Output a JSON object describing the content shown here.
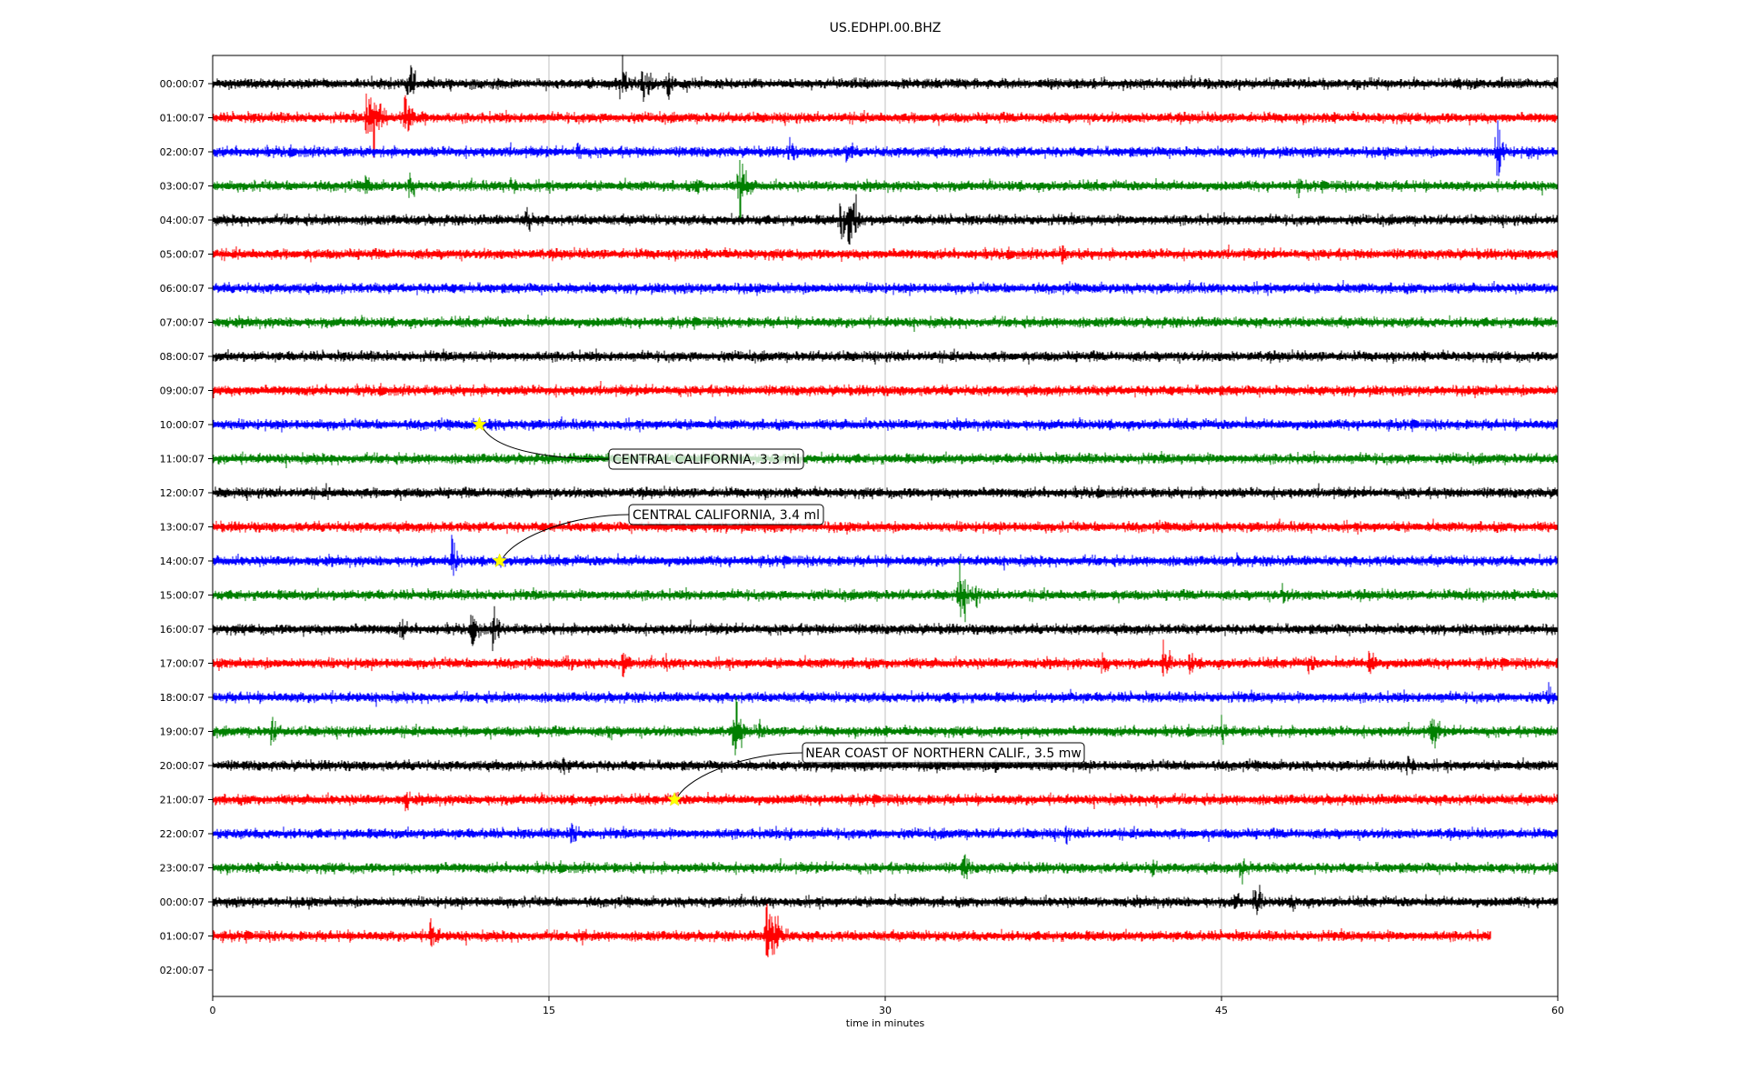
{
  "chart_data": {
    "type": "line",
    "title": "US.EDHPI.00.BHZ",
    "xlabel": "time in minutes",
    "ylabel": "",
    "xlim": [
      0,
      60
    ],
    "x_ticks": [
      "0",
      "15",
      "30",
      "45",
      "60"
    ],
    "x_tick_values": [
      0,
      15,
      30,
      45,
      60
    ],
    "grid": "vertical",
    "legend": "none",
    "series_colors": [
      "#000000",
      "#ff0000",
      "#0000ff",
      "#008000"
    ],
    "series": [
      {
        "label": "00:00:07",
        "end_minute": 60,
        "bursts": [
          [
            8.7,
            0.6
          ],
          [
            18.2,
            0.7
          ],
          [
            19.2,
            0.6
          ],
          [
            20.3,
            0.4
          ]
        ]
      },
      {
        "label": "01:00:07",
        "end_minute": 60,
        "bursts": [
          [
            6.9,
            1.0
          ],
          [
            7.2,
            0.9
          ],
          [
            8.6,
            0.8
          ],
          [
            9.3,
            0.3
          ]
        ]
      },
      {
        "label": "02:00:07",
        "end_minute": 60,
        "bursts": [
          [
            16.3,
            0.3
          ],
          [
            25.7,
            0.35
          ],
          [
            28.3,
            0.35
          ],
          [
            57.3,
            0.7
          ],
          [
            58.7,
            0.2
          ]
        ]
      },
      {
        "label": "03:00:07",
        "end_minute": 60,
        "bursts": [
          [
            6.8,
            0.35
          ],
          [
            8.8,
            0.35
          ],
          [
            13.3,
            0.35
          ],
          [
            21.6,
            0.25
          ],
          [
            23.5,
            0.9
          ],
          [
            48.4,
            0.2
          ]
        ]
      },
      {
        "label": "04:00:07",
        "end_minute": 60,
        "bursts": [
          [
            14.0,
            0.4
          ],
          [
            28.0,
            0.55
          ],
          [
            28.4,
            1.0
          ]
        ]
      },
      {
        "label": "05:00:07",
        "end_minute": 60,
        "bursts": [
          [
            37.8,
            0.3
          ]
        ]
      },
      {
        "label": "06:00:07",
        "end_minute": 60,
        "bursts": []
      },
      {
        "label": "07:00:07",
        "end_minute": 60,
        "bursts": []
      },
      {
        "label": "08:00:07",
        "end_minute": 60,
        "bursts": []
      },
      {
        "label": "09:00:07",
        "end_minute": 60,
        "bursts": []
      },
      {
        "label": "10:00:07",
        "end_minute": 60,
        "bursts": [
          [
            12.4,
            0.25
          ]
        ]
      },
      {
        "label": "11:00:07",
        "end_minute": 60,
        "bursts": []
      },
      {
        "label": "12:00:07",
        "end_minute": 60,
        "bursts": [
          [
            5.1,
            0.15
          ],
          [
            53.0,
            0.15
          ]
        ]
      },
      {
        "label": "13:00:07",
        "end_minute": 60,
        "bursts": []
      },
      {
        "label": "14:00:07",
        "end_minute": 60,
        "bursts": [
          [
            10.7,
            0.5
          ],
          [
            45.7,
            0.15
          ]
        ]
      },
      {
        "label": "15:00:07",
        "end_minute": 60,
        "bursts": [
          [
            33.3,
            0.8
          ],
          [
            33.9,
            0.4
          ],
          [
            47.7,
            0.3
          ],
          [
            56.0,
            0.25
          ]
        ]
      },
      {
        "label": "16:00:07",
        "end_minute": 60,
        "bursts": [
          [
            8.4,
            0.3
          ],
          [
            11.6,
            0.45
          ],
          [
            12.5,
            0.45
          ],
          [
            56.8,
            0.15
          ]
        ]
      },
      {
        "label": "17:00:07",
        "end_minute": 60,
        "bursts": [
          [
            15.8,
            0.3
          ],
          [
            18.3,
            0.35
          ],
          [
            20.2,
            0.2
          ],
          [
            39.7,
            0.45
          ],
          [
            42.4,
            0.45
          ],
          [
            43.6,
            0.3
          ],
          [
            48.9,
            0.3
          ],
          [
            51.6,
            0.45
          ]
        ]
      },
      {
        "label": "18:00:07",
        "end_minute": 60,
        "bursts": [
          [
            33.0,
            0.2
          ],
          [
            38.3,
            0.2
          ],
          [
            59.6,
            0.35
          ]
        ]
      },
      {
        "label": "19:00:07",
        "end_minute": 60,
        "bursts": [
          [
            2.6,
            0.4
          ],
          [
            17.7,
            0.25
          ],
          [
            23.3,
            0.75
          ],
          [
            24.3,
            0.3
          ],
          [
            45.0,
            0.35
          ],
          [
            54.4,
            0.5
          ]
        ]
      },
      {
        "label": "20:00:07",
        "end_minute": 60,
        "bursts": [
          [
            15.6,
            0.3
          ],
          [
            34.9,
            0.25
          ],
          [
            53.3,
            0.45
          ]
        ]
      },
      {
        "label": "21:00:07",
        "end_minute": 60,
        "bursts": [
          [
            8.6,
            0.3
          ],
          [
            20.6,
            0.2
          ],
          [
            42.0,
            0.25
          ]
        ]
      },
      {
        "label": "22:00:07",
        "end_minute": 60,
        "bursts": [
          [
            16.0,
            0.4
          ],
          [
            25.6,
            0.25
          ],
          [
            38.0,
            0.25
          ]
        ]
      },
      {
        "label": "23:00:07",
        "end_minute": 60,
        "bursts": [
          [
            10.0,
            0.2
          ],
          [
            33.5,
            0.4
          ],
          [
            41.9,
            0.25
          ],
          [
            45.9,
            0.4
          ]
        ]
      },
      {
        "label": "00:00:07",
        "end_minute": 60,
        "bursts": [
          [
            45.6,
            0.3
          ],
          [
            46.5,
            0.45
          ],
          [
            48.2,
            0.25
          ]
        ]
      },
      {
        "label": "01:00:07",
        "end_minute": 57,
        "bursts": [
          [
            9.7,
            0.5
          ],
          [
            24.7,
            0.8
          ],
          [
            25.0,
            1.0
          ],
          [
            16.5,
            0.2
          ]
        ]
      },
      {
        "label": "02:00:07",
        "end_minute": 0,
        "bursts": []
      }
    ],
    "annotations": [
      {
        "text": "CENTRAL CALIFORNIA, 3.3 ml",
        "row": 10,
        "minute": 11.9
      },
      {
        "text": "CENTRAL CALIFORNIA, 3.4 ml",
        "row": 14,
        "minute": 12.8
      },
      {
        "text": "NEAR COAST OF NORTHERN CALIF., 3.5 mw",
        "row": 21,
        "minute": 20.6
      }
    ]
  }
}
